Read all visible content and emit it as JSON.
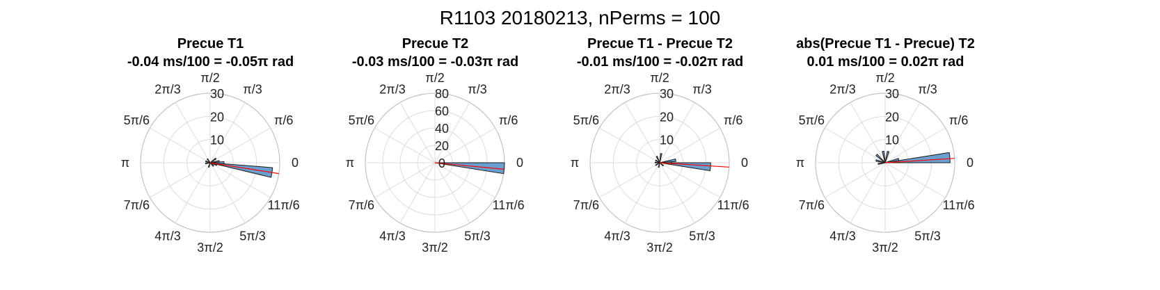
{
  "figure": {
    "title": "R1103 20180213, nPerms = 100"
  },
  "chart_data": [
    {
      "type": "polar-histogram",
      "title": "Precue T1",
      "subtitle": "-0.04 ms/100 = -0.05π rad",
      "rlim": [
        0,
        30
      ],
      "r_ticks": [
        "10",
        "20",
        "30"
      ],
      "theta_tick_labels": [
        "0",
        "π/6",
        "π/3",
        "π/2",
        "2π/3",
        "5π/6",
        "π",
        "7π/6",
        "4π/3",
        "3π/2",
        "5π/3",
        "11π/6"
      ],
      "grid": true,
      "bin_count": 40,
      "bar_color": "#6aa0d0",
      "mean_line_color": "#ff0000",
      "mean_angle_rad": -0.157,
      "bins": [
        {
          "theta": -0.157,
          "r": 27
        },
        {
          "theta": 0.0,
          "r": 6
        },
        {
          "theta": 0.157,
          "r": 4
        },
        {
          "theta": -0.314,
          "r": 3
        },
        {
          "theta": 0.628,
          "r": 3
        },
        {
          "theta": 2.2,
          "r": 2
        },
        {
          "theta": 2.83,
          "r": 2
        },
        {
          "theta": 3.3,
          "r": 2
        },
        {
          "theta": 4.4,
          "r": 2
        },
        {
          "theta": 5.5,
          "r": 2
        }
      ]
    },
    {
      "type": "polar-histogram",
      "title": "Precue T2",
      "subtitle": "-0.03 ms/100 = -0.03π rad",
      "rlim": [
        0,
        80
      ],
      "r_ticks": [
        "0",
        "20",
        "40",
        "60",
        "80"
      ],
      "theta_tick_labels": [
        "0",
        "π/6",
        "π/3",
        "π/2",
        "2π/3",
        "5π/6",
        "π",
        "7π/6",
        "4π/3",
        "3π/2",
        "5π/3",
        "11π/6"
      ],
      "grid": true,
      "bin_count": 40,
      "bar_color": "#6aa0d0",
      "mean_line_color": "#ff0000",
      "mean_angle_rad": -0.094,
      "bins": [
        {
          "theta": -0.079,
          "r": 80
        }
      ]
    },
    {
      "type": "polar-histogram",
      "title": "Precue T1 - Precue T2",
      "subtitle": "-0.01 ms/100 = -0.02π rad",
      "rlim": [
        0,
        30
      ],
      "r_ticks": [
        "10",
        "20",
        "30"
      ],
      "theta_tick_labels": [
        "0",
        "π/6",
        "π/3",
        "π/2",
        "2π/3",
        "5π/6",
        "π",
        "7π/6",
        "4π/3",
        "3π/2",
        "5π/3",
        "11π/6"
      ],
      "grid": true,
      "bin_count": 40,
      "bar_color": "#6aa0d0",
      "mean_line_color": "#ff0000",
      "mean_angle_rad": -0.063,
      "bins": [
        {
          "theta": -0.079,
          "r": 22
        },
        {
          "theta": 0.157,
          "r": 7
        },
        {
          "theta": 0.0,
          "r": 5
        },
        {
          "theta": 1.4,
          "r": 4
        },
        {
          "theta": 2.0,
          "r": 3
        },
        {
          "theta": 2.6,
          "r": 2
        },
        {
          "theta": 3.1,
          "r": 2
        },
        {
          "theta": 3.7,
          "r": 2
        },
        {
          "theta": 4.5,
          "r": 2
        },
        {
          "theta": 5.6,
          "r": 2
        }
      ]
    },
    {
      "type": "polar-histogram",
      "title": "abs(Precue T1 - Precue) T2",
      "subtitle": "0.01 ms/100 = 0.02π rad",
      "rlim": [
        0,
        30
      ],
      "r_ticks": [
        "10",
        "20",
        "30"
      ],
      "theta_tick_labels": [
        "0",
        "π/6",
        "π/3",
        "π/2",
        "2π/3",
        "5π/6",
        "π",
        "7π/6",
        "4π/3",
        "3π/2",
        "5π/3",
        "11π/6"
      ],
      "grid": true,
      "bin_count": 40,
      "bar_color": "#6aa0d0",
      "mean_line_color": "#ff0000",
      "mean_angle_rad": 0.063,
      "bins": [
        {
          "theta": 0.079,
          "r": 28
        },
        {
          "theta": 0.236,
          "r": 6
        },
        {
          "theta": 1.3,
          "r": 5
        },
        {
          "theta": 1.75,
          "r": 5
        },
        {
          "theta": 2.4,
          "r": 5
        },
        {
          "theta": 2.9,
          "r": 4
        },
        {
          "theta": 3.3,
          "r": 3
        }
      ]
    }
  ]
}
